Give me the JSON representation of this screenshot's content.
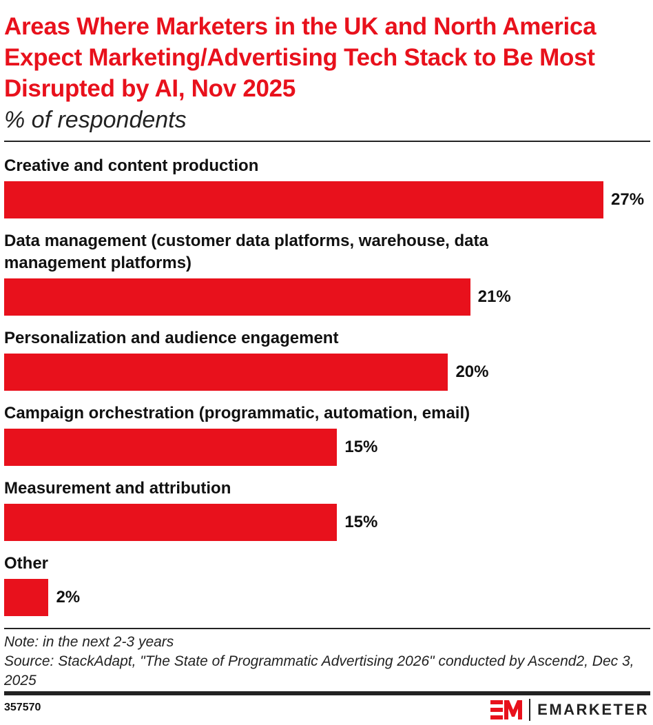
{
  "chart_data": {
    "type": "bar",
    "orientation": "horizontal",
    "title": "Areas Where Marketers in the UK and North America Expect Marketing/Advertising Tech Stack to Be Most Disrupted by AI, Nov 2025",
    "subtitle": "% of respondents",
    "categories": [
      "Creative and content production",
      "Data management (customer data platforms, warehouse, data management platforms)",
      "Personalization and audience engagement",
      "Campaign orchestration (programmatic, automation, email)",
      "Measurement and attribution",
      "Other"
    ],
    "values": [
      27,
      21,
      20,
      15,
      15,
      2
    ],
    "value_labels": [
      "27%",
      "21%",
      "20%",
      "15%",
      "15%",
      "2%"
    ],
    "xlim": [
      0,
      27
    ],
    "grid": false,
    "bar_color": "#e8111c"
  },
  "footer": {
    "note": "Note: in the next 2-3 years",
    "source": "Source: StackAdapt, \"The State of Programmatic Advertising 2026\" conducted by Ascend2, Dec 3, 2025",
    "chart_id": "357570",
    "brand": "EMARKETER"
  }
}
